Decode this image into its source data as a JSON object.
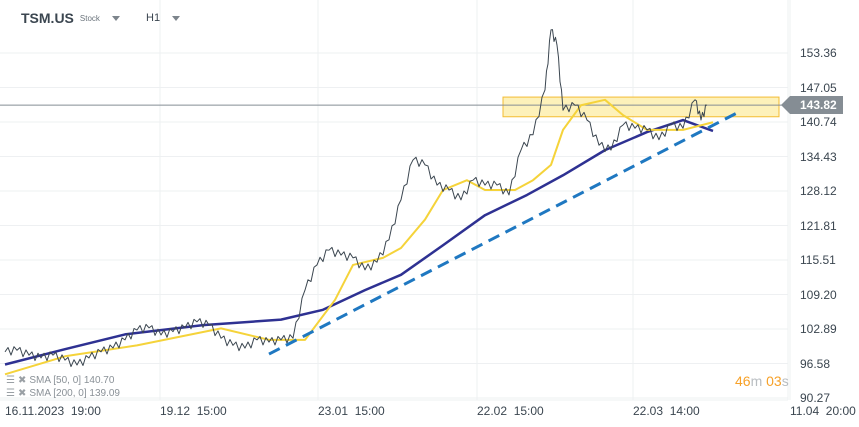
{
  "header": {
    "symbol": "TSM.US",
    "type": "Stock",
    "timeframe": "H1"
  },
  "current_price": "143.82",
  "countdown": {
    "minutes": "46",
    "m": "m",
    "seconds": "03",
    "s": "s"
  },
  "legend": [
    {
      "label": "SMA [50, 0] 140.70"
    },
    {
      "label": "SMA [200, 0] 139.09"
    }
  ],
  "colors": {
    "price": "#3b4650",
    "sma50": "#f5d33a",
    "sma200": "#2e3192",
    "trend": "#1f78c1",
    "zone_fill": "#fdf0b3",
    "zone_border": "#f2b51c",
    "grid": "#eef0f2"
  },
  "chart_data": {
    "type": "line",
    "title": "TSM.US H1",
    "ylim": [
      90.27,
      153.36
    ],
    "xlim": [
      0,
      65
    ],
    "yticks": [
      "153.36",
      "147.05",
      "140.74",
      "134.43",
      "128.12",
      "121.81",
      "115.51",
      "109.20",
      "102.89",
      "96.58",
      "90.27"
    ],
    "xticks": [
      "16.11.2023  19:00",
      "19.12  15:00",
      "23.01  15:00",
      "22.02  15:00",
      "22.03  14:00",
      "11.04  20:00"
    ],
    "series": [
      {
        "name": "TSM.US",
        "values": [
          [
            0,
            98.7
          ],
          [
            1,
            99.0
          ],
          [
            2,
            98.1
          ],
          [
            3,
            97.6
          ],
          [
            4,
            98.1
          ],
          [
            5,
            97.2
          ],
          [
            6,
            96.3
          ],
          [
            7,
            97.6
          ],
          [
            8,
            98.7
          ],
          [
            9,
            99.4
          ],
          [
            10,
            100.9
          ],
          [
            11,
            102.7
          ],
          [
            12,
            103.1
          ],
          [
            13,
            101.8
          ],
          [
            14,
            102.4
          ],
          [
            15,
            103.1
          ],
          [
            16,
            104.2
          ],
          [
            17,
            103.6
          ],
          [
            18,
            101.2
          ],
          [
            19,
            99.9
          ],
          [
            20,
            99.4
          ],
          [
            21,
            100.9
          ],
          [
            22,
            100.5
          ],
          [
            23,
            100.9
          ],
          [
            24,
            101.2
          ],
          [
            25,
            110.0
          ],
          [
            26,
            114.6
          ],
          [
            27,
            117.3
          ],
          [
            28,
            116.4
          ],
          [
            29,
            115.9
          ],
          [
            30,
            113.7
          ],
          [
            31,
            115.1
          ],
          [
            32,
            119.2
          ],
          [
            33,
            126.5
          ],
          [
            34,
            133.8
          ],
          [
            35,
            132.9
          ],
          [
            36,
            129.2
          ],
          [
            37,
            128.3
          ],
          [
            38,
            126.5
          ],
          [
            39,
            130.1
          ],
          [
            40,
            129.2
          ],
          [
            41,
            129.2
          ],
          [
            42,
            127.4
          ],
          [
            43,
            135.6
          ],
          [
            44,
            138.4
          ],
          [
            45,
            146.6
          ],
          [
            45.5,
            157.6
          ],
          [
            46,
            154.8
          ],
          [
            46.5,
            142.9
          ],
          [
            47.5,
            143.8
          ],
          [
            48.5,
            141.1
          ],
          [
            49.5,
            136.5
          ],
          [
            50.5,
            135.6
          ],
          [
            51.5,
            140.2
          ],
          [
            52.5,
            139.6
          ],
          [
            53.5,
            139.3
          ],
          [
            54.5,
            137.5
          ],
          [
            55.5,
            140.2
          ],
          [
            56.5,
            139.6
          ],
          [
            57.5,
            144.8
          ],
          [
            58,
            141.1
          ],
          [
            58.5,
            143.8
          ]
        ]
      },
      {
        "name": "SMA 50",
        "values": [
          [
            0,
            94.6
          ],
          [
            5,
            97.9
          ],
          [
            11,
            99.9
          ],
          [
            18,
            103.0
          ],
          [
            22,
            100.9
          ],
          [
            25,
            100.9
          ],
          [
            27.5,
            108.2
          ],
          [
            29,
            114.6
          ],
          [
            31.5,
            115.9
          ],
          [
            33,
            117.7
          ],
          [
            35,
            122.9
          ],
          [
            36.5,
            128.3
          ],
          [
            38.5,
            130.1
          ],
          [
            40,
            128.3
          ],
          [
            42.5,
            128.3
          ],
          [
            44,
            130.1
          ],
          [
            45.5,
            132.9
          ],
          [
            46.5,
            139.3
          ],
          [
            48,
            143.8
          ],
          [
            50,
            144.8
          ],
          [
            51.5,
            142.0
          ],
          [
            53.5,
            139.3
          ],
          [
            56.5,
            139.3
          ],
          [
            59,
            140.7
          ]
        ]
      },
      {
        "name": "SMA 200",
        "values": [
          [
            0,
            96.4
          ],
          [
            5,
            99.2
          ],
          [
            10,
            101.9
          ],
          [
            16.5,
            103.6
          ],
          [
            23,
            104.6
          ],
          [
            26.5,
            106.4
          ],
          [
            30,
            110.0
          ],
          [
            33,
            112.8
          ],
          [
            36.5,
            118.2
          ],
          [
            40,
            123.7
          ],
          [
            43.5,
            127.4
          ],
          [
            46.5,
            131.0
          ],
          [
            50,
            135.6
          ],
          [
            53.5,
            138.9
          ],
          [
            56.5,
            141.1
          ],
          [
            59,
            139.1
          ]
        ]
      },
      {
        "name": "Trend line",
        "values": [
          [
            22,
            98.3
          ],
          [
            61,
            142.4
          ]
        ]
      }
    ],
    "zone": {
      "from_x": 41.5,
      "to_x": 64.5,
      "low": 141.7,
      "high": 145.3
    },
    "grid": true
  }
}
